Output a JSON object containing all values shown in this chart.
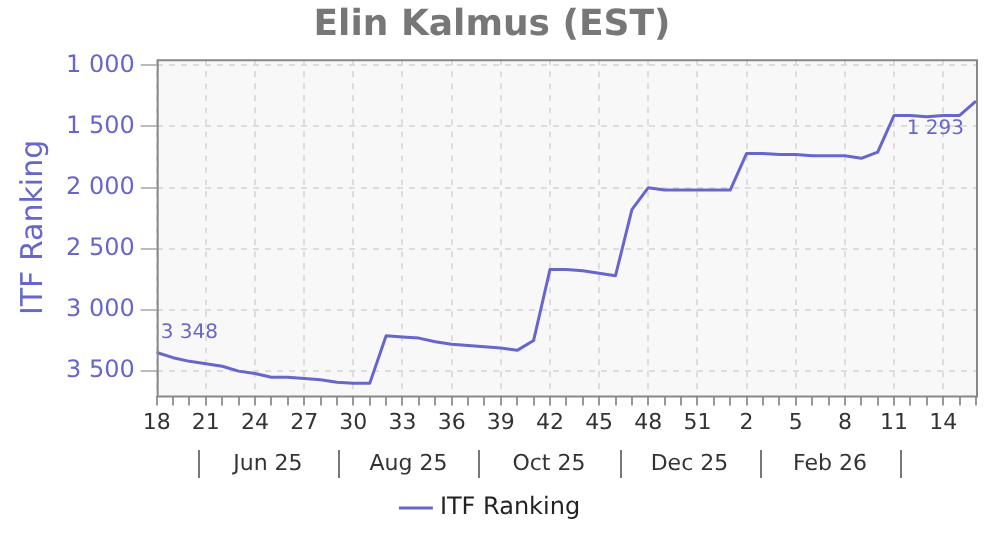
{
  "chart_data": {
    "type": "line",
    "title": "Elin Kalmus (EST)",
    "ylabel": "ITF Ranking",
    "categories": [
      "18",
      null,
      null,
      "21",
      null,
      null,
      "24",
      null,
      null,
      "27",
      null,
      null,
      "30",
      null,
      null,
      "33",
      null,
      null,
      "36",
      null,
      null,
      "39",
      null,
      null,
      "42",
      null,
      null,
      "45",
      null,
      null,
      "48",
      null,
      null,
      "51",
      null,
      null,
      "2",
      null,
      null,
      "5",
      null,
      null,
      "8",
      null,
      null,
      "11",
      null,
      null,
      "14",
      null,
      null
    ],
    "series": [
      {
        "name": "ITF Ranking",
        "color": "#6666cc",
        "values": [
          3348,
          3390,
          3420,
          3440,
          3460,
          3500,
          3520,
          3550,
          3550,
          3560,
          3570,
          3590,
          3600,
          3600,
          3210,
          3220,
          3230,
          3260,
          3280,
          3290,
          3300,
          3310,
          3330,
          3250,
          2670,
          2670,
          2680,
          2700,
          2720,
          2180,
          2000,
          2020,
          2020,
          2020,
          2020,
          2020,
          1720,
          1720,
          1730,
          1730,
          1740,
          1740,
          1740,
          1760,
          1710,
          1410,
          1410,
          1420,
          1410,
          1410,
          1293
        ],
        "value_labels": [
          "3 348",
          null,
          null,
          null,
          null,
          null,
          null,
          null,
          null,
          null,
          null,
          null,
          null,
          null,
          null,
          null,
          null,
          null,
          null,
          null,
          null,
          null,
          null,
          null,
          null,
          null,
          null,
          null,
          null,
          null,
          null,
          null,
          null,
          null,
          null,
          null,
          null,
          null,
          null,
          null,
          null,
          null,
          null,
          null,
          null,
          null,
          null,
          null,
          null,
          null,
          "1 293"
        ]
      }
    ],
    "ylim": [
      3700,
      950
    ],
    "yticks": [
      {
        "value": 1000,
        "label": "1 000"
      },
      {
        "value": 1500,
        "label": "1 500"
      },
      {
        "value": 2000,
        "label": "2 000"
      },
      {
        "value": 2500,
        "label": "2 500"
      },
      {
        "value": 3000,
        "label": "3 000"
      },
      {
        "value": 3500,
        "label": "3 500"
      }
    ],
    "annotations": [
      "Jun 25",
      "Aug 25",
      "Oct 25",
      "Dec 25",
      "Feb 26"
    ],
    "grid": true,
    "legend": "bottom",
    "marker": "none",
    "line_style": "solid"
  }
}
